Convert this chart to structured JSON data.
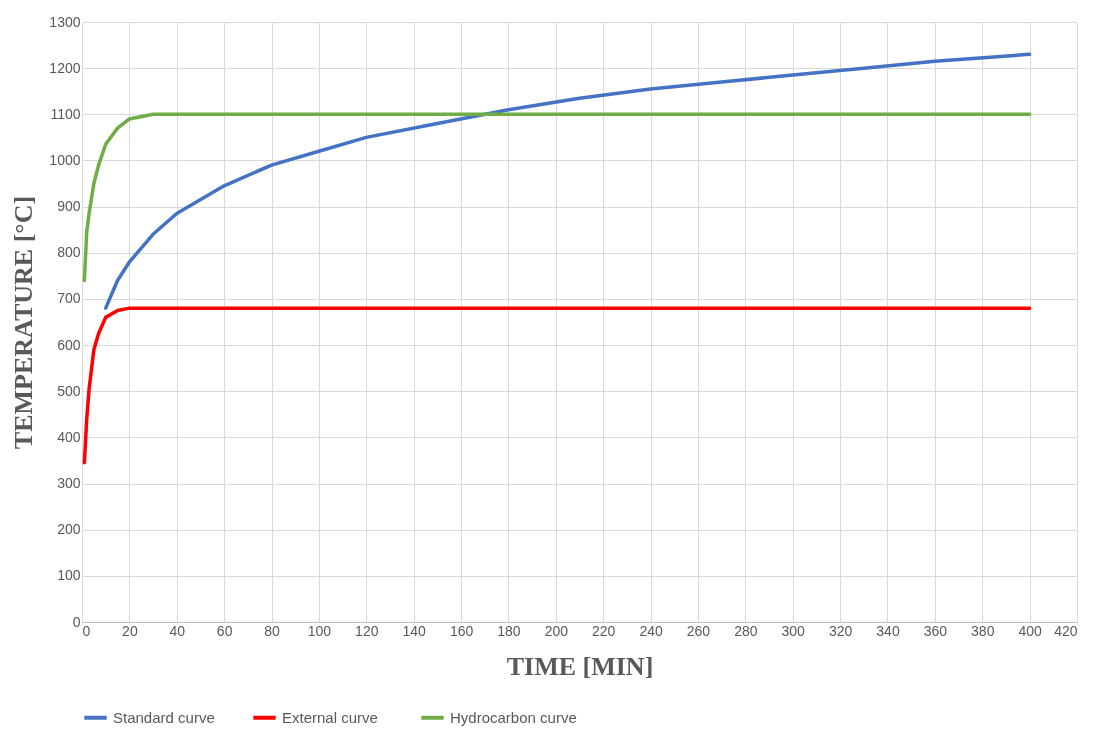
{
  "chart_data": {
    "type": "line",
    "xlabel": "TIME  [MIN]",
    "ylabel": "TEMPERATURE  [°C]",
    "xlim": [
      0,
      420
    ],
    "xticks": [
      0,
      20,
      40,
      60,
      80,
      100,
      120,
      140,
      160,
      180,
      200,
      220,
      240,
      260,
      280,
      300,
      320,
      340,
      360,
      380,
      400,
      420
    ],
    "ylim": [
      0,
      1300
    ],
    "yticks": [
      0,
      100,
      200,
      300,
      400,
      500,
      600,
      700,
      800,
      900,
      1000,
      1100,
      1200,
      1300
    ],
    "grid": true,
    "legend": "bottom",
    "marker": "none",
    "line_style": "solid",
    "series": [
      {
        "name": "Standard curve",
        "color": "#4472c4",
        "x": [
          10,
          15,
          20,
          30,
          40,
          60,
          80,
          100,
          120,
          150,
          180,
          210,
          240,
          270,
          300,
          330,
          360,
          400
        ],
        "values": [
          680,
          740,
          780,
          840,
          885,
          945,
          990,
          1020,
          1050,
          1080,
          1110,
          1135,
          1155,
          1170,
          1185,
          1200,
          1215,
          1230
        ]
      },
      {
        "name": "External  curve",
        "color": "#ff0000",
        "x": [
          1,
          2,
          3,
          5,
          7,
          10,
          15,
          20,
          30,
          60,
          100,
          200,
          300,
          400
        ],
        "values": [
          345,
          440,
          505,
          590,
          625,
          660,
          675,
          680,
          680,
          680,
          680,
          680,
          680,
          680
        ]
      },
      {
        "name": "Hydrocarbon  curve",
        "color": "#70ad47",
        "x": [
          1,
          2,
          3,
          5,
          7,
          10,
          15,
          20,
          30,
          40,
          60,
          100,
          200,
          300,
          400
        ],
        "values": [
          740,
          845,
          885,
          950,
          990,
          1035,
          1070,
          1090,
          1100,
          1100,
          1100,
          1100,
          1100,
          1100,
          1100
        ]
      }
    ]
  }
}
